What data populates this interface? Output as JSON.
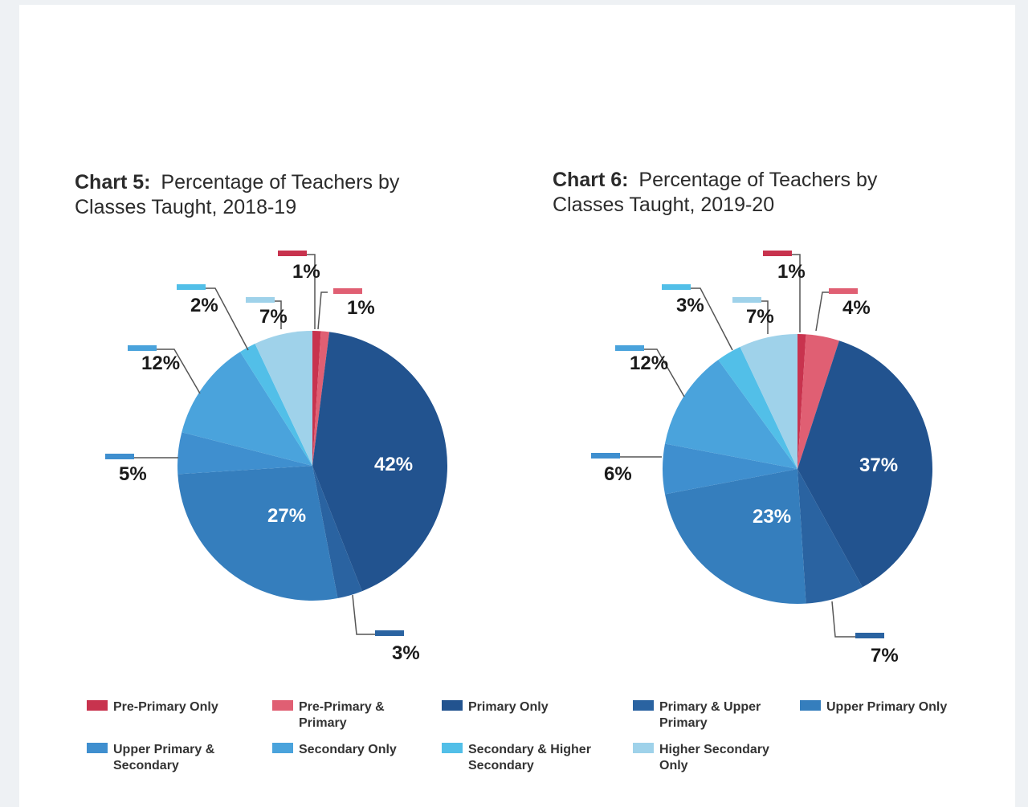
{
  "charts": [
    {
      "title_bold": "Chart 5:",
      "title_rest": "Percentage of Teachers by",
      "title_line2": "Classes Taught, 2018-19"
    },
    {
      "title_bold": "Chart 6:",
      "title_rest": "Percentage of Teachers by",
      "title_line2": "Classes Taught, 2019-20"
    }
  ],
  "chart_data": [
    {
      "type": "pie",
      "title": "Chart 5: Percentage of Teachers by Classes Taught, 2018-19",
      "categories": [
        "Pre-Primary Only",
        "Pre-Primary & Primary",
        "Primary Only",
        "Primary & Upper Primary",
        "Upper Primary Only",
        "Upper Primary & Secondary",
        "Secondary Only",
        "Secondary & Higher Secondary",
        "Higher Secondary Only"
      ],
      "values": [
        1,
        1,
        42,
        3,
        27,
        5,
        12,
        2,
        7
      ],
      "labels": [
        "1%",
        "1%",
        "42%",
        "3%",
        "27%",
        "5%",
        "12%",
        "2%",
        "7%"
      ]
    },
    {
      "type": "pie",
      "title": "Chart 6: Percentage of Teachers by Classes Taught, 2019-20",
      "categories": [
        "Pre-Primary Only",
        "Pre-Primary & Primary",
        "Primary Only",
        "Primary & Upper Primary",
        "Upper Primary Only",
        "Upper Primary & Secondary",
        "Secondary Only",
        "Secondary & Higher Secondary",
        "Higher Secondary Only"
      ],
      "values": [
        1,
        4,
        37,
        7,
        23,
        6,
        12,
        3,
        7
      ],
      "labels": [
        "1%",
        "4%",
        "37%",
        "7%",
        "23%",
        "6%",
        "12%",
        "3%",
        "7%"
      ]
    }
  ],
  "legend": [
    {
      "lines": [
        "Pre-Primary Only"
      ],
      "color": "#c8334e"
    },
    {
      "lines": [
        "Pre-Primary &",
        "Primary"
      ],
      "color": "#e05f73"
    },
    {
      "lines": [
        "Primary Only"
      ],
      "color": "#22538f"
    },
    {
      "lines": [
        "Primary & Upper",
        "Primary"
      ],
      "color": "#2a63a1"
    },
    {
      "lines": [
        "Upper Primary Only"
      ],
      "color": "#357ebd"
    },
    {
      "lines": [
        "Upper Primary &",
        "Secondary"
      ],
      "color": "#3f8fcf"
    },
    {
      "lines": [
        "Secondary Only"
      ],
      "color": "#4aa3dc"
    },
    {
      "lines": [
        "Secondary & Higher",
        "Secondary"
      ],
      "color": "#52bfe8"
    },
    {
      "lines": [
        "Higher Secondary",
        "Only"
      ],
      "color": "#9fd2ea"
    }
  ]
}
